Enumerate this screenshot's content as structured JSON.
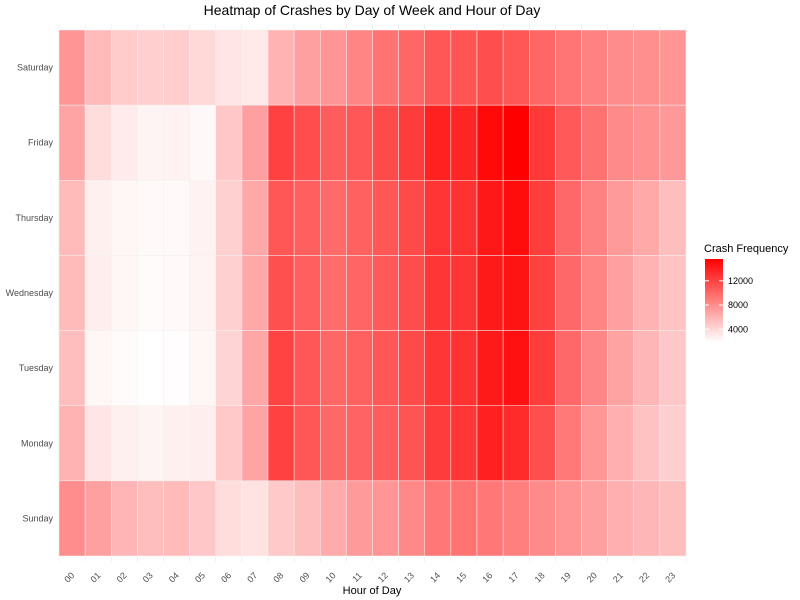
{
  "chart_data": {
    "type": "heatmap",
    "title": "Heatmap of Crashes by Day of Week and Hour of Day",
    "xlabel": "Hour of Day",
    "ylabel": "",
    "x_categories": [
      "00",
      "01",
      "02",
      "03",
      "04",
      "05",
      "06",
      "07",
      "08",
      "09",
      "10",
      "11",
      "12",
      "13",
      "14",
      "15",
      "16",
      "17",
      "18",
      "19",
      "20",
      "21",
      "22",
      "23"
    ],
    "y_categories": [
      "Saturday",
      "Friday",
      "Thursday",
      "Wednesday",
      "Tuesday",
      "Monday",
      "Sunday"
    ],
    "values": [
      [
        7600,
        5600,
        4700,
        4500,
        4600,
        4000,
        3300,
        3100,
        6000,
        7000,
        7600,
        8500,
        9400,
        10100,
        11000,
        11100,
        11400,
        11000,
        10100,
        9300,
        8600,
        8100,
        7900,
        7600
      ],
      [
        6800,
        3700,
        3000,
        2500,
        2600,
        2300,
        4900,
        7000,
        12100,
        11500,
        10600,
        10900,
        11600,
        12400,
        13900,
        13600,
        15100,
        15600,
        12600,
        10800,
        9500,
        8200,
        7800,
        7400
      ],
      [
        5600,
        2700,
        2400,
        2200,
        2200,
        2600,
        4400,
        6600,
        11000,
        10500,
        9900,
        10400,
        11000,
        11600,
        12800,
        12900,
        14300,
        14900,
        12300,
        10000,
        8600,
        7300,
        6500,
        5400
      ],
      [
        5600,
        2800,
        2400,
        2100,
        2200,
        2500,
        4400,
        6600,
        11300,
        10500,
        9800,
        10200,
        10800,
        11500,
        12700,
        12800,
        14200,
        14500,
        12100,
        10000,
        8500,
        7000,
        6000,
        5100
      ],
      [
        5400,
        2400,
        2100,
        1900,
        2000,
        2400,
        4200,
        6700,
        12000,
        10900,
        10100,
        10400,
        10900,
        11600,
        12700,
        12900,
        14200,
        14700,
        12400,
        10000,
        8400,
        6900,
        5800,
        4900
      ],
      [
        6000,
        3300,
        2700,
        2500,
        2700,
        2800,
        4800,
        6800,
        12100,
        11000,
        10000,
        10300,
        10600,
        11100,
        12400,
        12700,
        13900,
        13300,
        11400,
        9100,
        7500,
        6200,
        5200,
        4500
      ],
      [
        8000,
        7000,
        5900,
        5400,
        5600,
        4900,
        3700,
        3400,
        4800,
        5400,
        6400,
        7300,
        7600,
        8300,
        9200,
        9400,
        9200,
        8800,
        8200,
        7600,
        7000,
        6200,
        5800,
        5400
      ]
    ],
    "colorscale": {
      "low": "#ffffff",
      "high": "#ff0000",
      "min": 1900,
      "max": 15600
    },
    "legend": {
      "title": "Crash Frequency",
      "ticks": [
        4000,
        8000,
        12000
      ],
      "tick_labels": [
        "4000",
        "8000",
        "12000"
      ],
      "position": "right"
    },
    "grid": true
  }
}
